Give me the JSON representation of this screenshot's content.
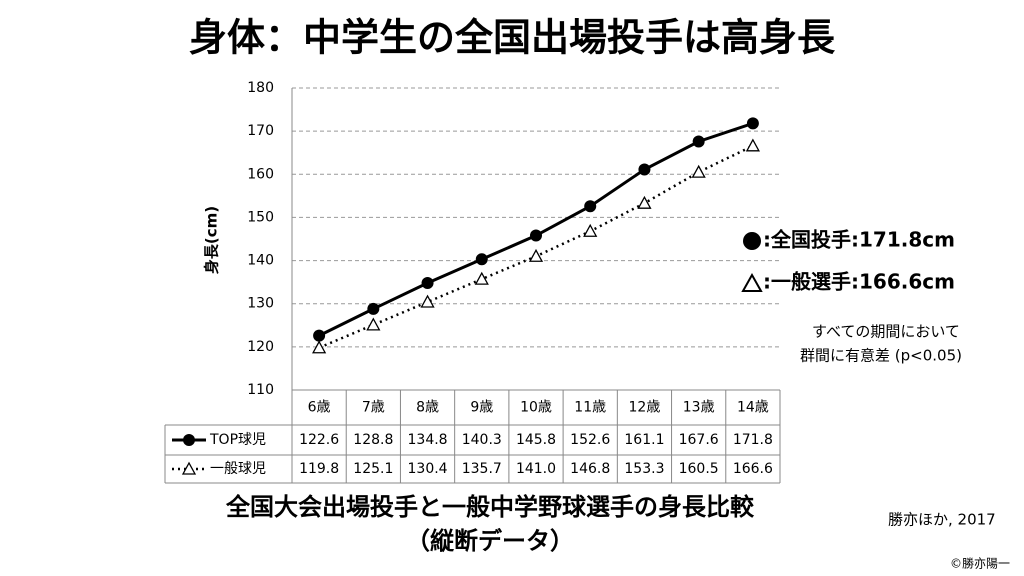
{
  "chart_data": {
    "type": "line",
    "title": "身体：中学生の全国出場投手は高身長",
    "y_label": "身長(cm)",
    "categories": [
      "6歳",
      "7歳",
      "8歳",
      "9歳",
      "10歳",
      "11歳",
      "12歳",
      "13歳",
      "14歳"
    ],
    "series": [
      {
        "name": "TOP球児",
        "color": "#000000",
        "marker": "circle",
        "line_style": "solid",
        "values": [
          122.6,
          128.8,
          134.8,
          140.3,
          145.8,
          152.6,
          161.1,
          167.6,
          171.8
        ],
        "value_labels": [
          "122.6",
          "128.8",
          "134.8",
          "140.3",
          "145.8",
          "152.6",
          "161.1",
          "167.6",
          "171.8"
        ]
      },
      {
        "name": "一般球児",
        "color": "#000000",
        "marker": "triangle",
        "line_style": "dotted",
        "values": [
          119.8,
          125.1,
          130.4,
          135.7,
          141.0,
          146.8,
          153.3,
          160.5,
          166.6
        ],
        "value_labels": [
          "119.8",
          "125.1",
          "130.4",
          "135.7",
          "141.0",
          "146.8",
          "153.3",
          "160.5",
          "166.6"
        ]
      }
    ],
    "ylim": [
      110,
      180
    ],
    "yticks": [
      110,
      120,
      130,
      140,
      150,
      160,
      170,
      180
    ],
    "grid": true,
    "annotations": [
      ":全国投手:171.8cm",
      ":一般選手:166.6cm",
      "すべての期間において",
      "群間に有意差 (p<0.05)"
    ],
    "caption": [
      "全国大会出場投手と一般中学野球選手の身長比較",
      "（縦断データ）"
    ],
    "source": "勝亦ほか, 2017",
    "copyright": "©勝亦陽一"
  }
}
